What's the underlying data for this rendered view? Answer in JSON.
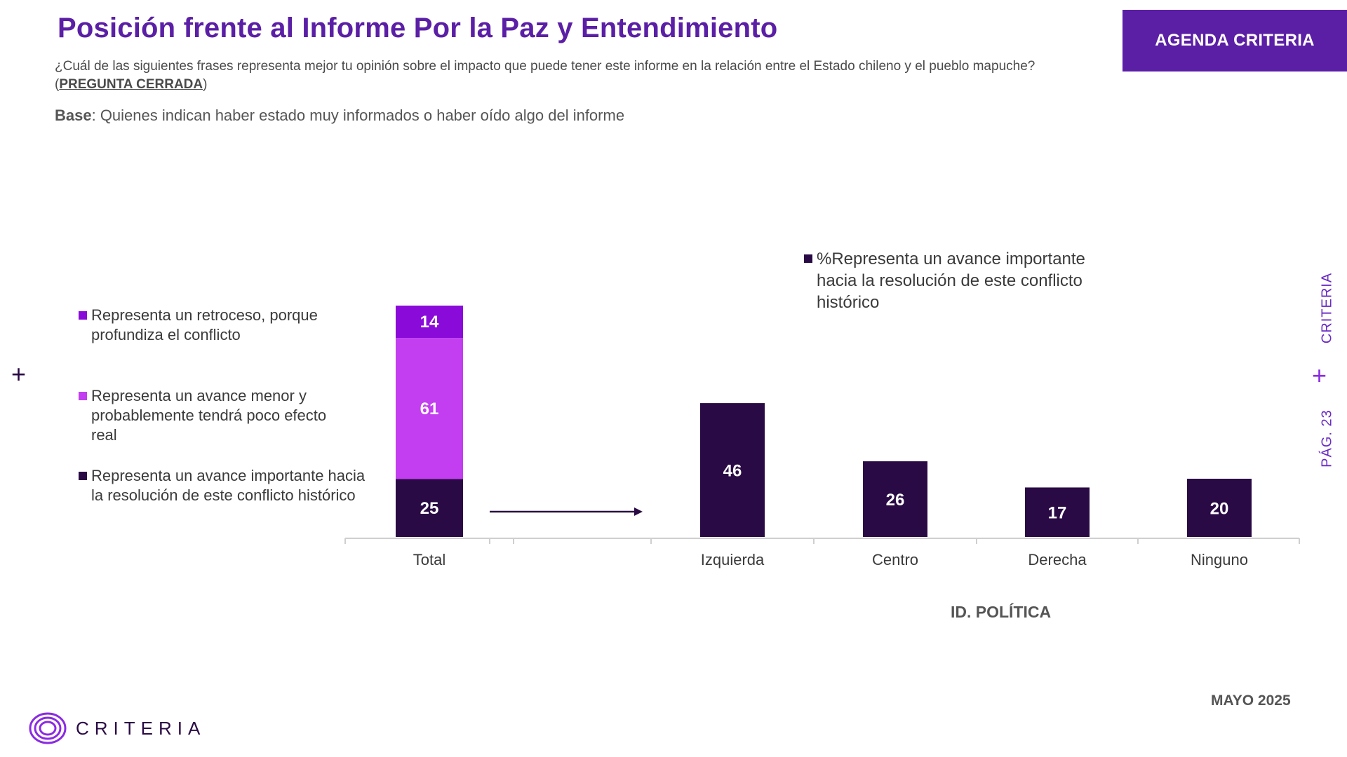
{
  "header": {
    "title": "Posición frente al Informe Por la Paz y Entendimiento",
    "question": "¿Cuál de las siguientes frases representa mejor tu opinión sobre el impacto que puede tener este informe en la relación entre el Estado chileno y el pueblo mapuche? (",
    "question_tag": "PREGUNTA CERRADA",
    "question_end": ")",
    "base_label": "Base",
    "base_text": ": Quienes  indican haber estado muy informados o haber oído algo del informe"
  },
  "brand": {
    "box_label": "AGENDA CRITERIA",
    "side_label": "CRITERIA",
    "page_label": "PÁG. 23",
    "logo_text": "CRITERIA",
    "date": "MAYO 2025"
  },
  "colors": {
    "accent": "#5b1fa6",
    "retroceso": "#8a0bd9",
    "avance_menor": "#c23ef0",
    "avance_importante": "#2a0a45",
    "axis": "#cfcfcf"
  },
  "legend_left": [
    {
      "label": "Representa un retroceso, porque profundiza el conflicto",
      "color": "#8a0bd9"
    },
    {
      "label": "Representa un avance menor y probablemente tendrá poco efecto real",
      "color": "#c23ef0"
    },
    {
      "label": "Representa un avance importante hacia la resolución de este conflicto histórico",
      "color": "#2a0a45"
    }
  ],
  "legend_right": {
    "label": "%Representa un avance importante hacia la resolución de este conflicto histórico",
    "color": "#2a0a45"
  },
  "chart_data": [
    {
      "type": "bar",
      "stacked": true,
      "categories": [
        "Total"
      ],
      "series": [
        {
          "name": "Representa un avance importante hacia la resolución de este conflicto histórico",
          "values": [
            25
          ]
        },
        {
          "name": "Representa un avance menor y probablemente tendrá poco efecto real",
          "values": [
            61
          ]
        },
        {
          "name": "Representa un retroceso, porque profundiza el conflicto",
          "values": [
            14
          ]
        }
      ],
      "ylim": [
        0,
        100
      ]
    },
    {
      "type": "bar",
      "categories": [
        "Izquierda",
        "Centro",
        "Derecha",
        "Ninguno"
      ],
      "values": [
        46,
        26,
        17,
        20
      ],
      "xlabel": "ID. POLÍTICA",
      "series_name": "%Representa un avance importante hacia la resolución de este conflicto histórico",
      "ylim": [
        0,
        100
      ]
    }
  ]
}
